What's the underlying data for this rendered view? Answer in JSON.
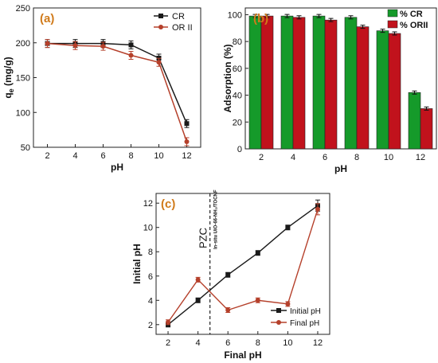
{
  "chart_data": [
    {
      "type": "line",
      "panel_label": "(a)",
      "xlabel": "pH",
      "ylabel": "qe (mg/g)",
      "ylabel_main": "q",
      "ylabel_sub": "e",
      "ylabel_rest": " (mg/g)",
      "xlim": [
        1,
        13
      ],
      "ylim": [
        50,
        250
      ],
      "x_ticks": [
        2,
        4,
        6,
        8,
        10,
        12
      ],
      "y_ticks": [
        50,
        100,
        150,
        200,
        250
      ],
      "x": [
        2,
        4,
        6,
        8,
        10,
        12
      ],
      "series": [
        {
          "name": "CR",
          "color": "#1a1a1a",
          "marker": "square",
          "values": [
            199,
            199,
            199,
            197,
            178,
            84
          ]
        },
        {
          "name": "OR II",
          "color": "#b5402b",
          "marker": "circle",
          "values": [
            199,
            196,
            195,
            182,
            172,
            58
          ]
        }
      ],
      "legend_position": "top-right"
    },
    {
      "type": "bar",
      "panel_label": "(b)",
      "xlabel": "pH",
      "ylabel": "Adsorption (%)",
      "ylim": [
        0,
        105
      ],
      "y_ticks": [
        0,
        20,
        40,
        60,
        80,
        100
      ],
      "categories": [
        "2",
        "4",
        "6",
        "8",
        "10",
        "12"
      ],
      "series": [
        {
          "name": "% CR",
          "color": "#159a2a",
          "values": [
            99,
            99,
            99,
            98,
            88,
            42
          ]
        },
        {
          "name": "% ORII",
          "color": "#c1121c",
          "values": [
            99,
            98,
            96,
            91,
            86,
            30
          ]
        }
      ],
      "legend_position": "top-right"
    },
    {
      "type": "line",
      "panel_label": "(c)",
      "xlabel": "Final pH",
      "ylabel": "Initial pH",
      "xlim": [
        1.2,
        12.8
      ],
      "ylim": [
        1.2,
        12.8
      ],
      "x_ticks": [
        2,
        4,
        6,
        8,
        10,
        12
      ],
      "y_ticks": [
        2,
        4,
        6,
        8,
        10,
        12
      ],
      "x": [
        2,
        4,
        6,
        8,
        10,
        12
      ],
      "series": [
        {
          "name": "Initial pH",
          "color": "#1a1a1a",
          "marker": "square",
          "values": [
            2,
            4,
            6.1,
            7.9,
            10,
            11.8
          ]
        },
        {
          "name": "Final pH",
          "color": "#b5402b",
          "marker": "circle",
          "values": [
            2.2,
            5.7,
            3.2,
            4.0,
            3.7,
            11.5
          ]
        }
      ],
      "pzc_x": 4.8,
      "pzc_label": "PZC",
      "pzc_sublabel": "In-situ UiO-66-NH₂/TOCNF",
      "legend_position": "bottom-right"
    }
  ]
}
